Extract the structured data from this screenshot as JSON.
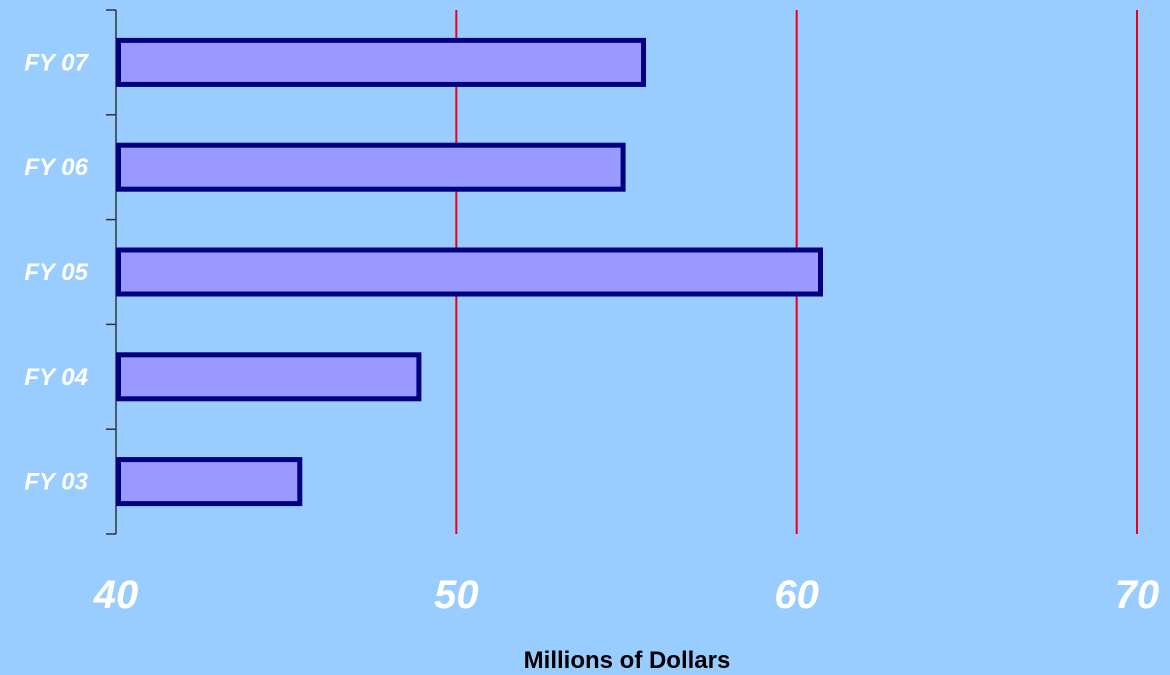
{
  "chart_data": {
    "type": "bar",
    "orientation": "horizontal",
    "categories": [
      "FY 07",
      "FY 06",
      "FY 05",
      "FY 04",
      "FY 03"
    ],
    "values": [
      55.5,
      54.9,
      60.7,
      48.9,
      45.4
    ],
    "title": "",
    "xlabel": "Millions of Dollars",
    "ylabel": "",
    "xlim": [
      40,
      70
    ],
    "x_ticks": [
      "40",
      "50",
      "60",
      "70"
    ],
    "grid": "vertical",
    "legend": "none"
  },
  "colors": {
    "background": "#99CCFF",
    "bar_fill": "#9999FF",
    "bar_stroke": "#000080",
    "gridline": "#E8001C",
    "axis": "#333333",
    "label_text": "#FFFFFF",
    "axis_title_text": "#000000"
  }
}
